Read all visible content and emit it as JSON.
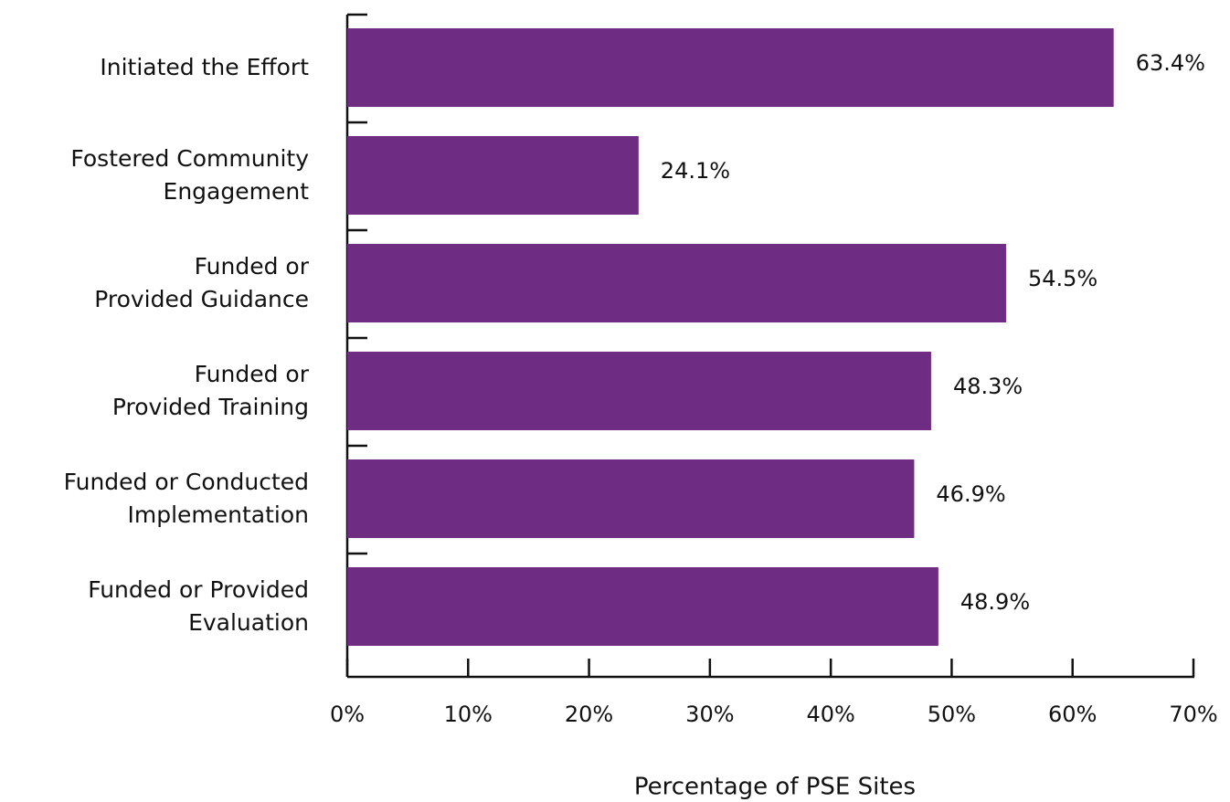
{
  "chart_data": {
    "type": "barh",
    "categories": [
      "Initiated the Effort",
      "Fostered Community\nEngagement",
      "Funded or\nProvided Guidance",
      "Funded or\nProvided Training",
      "Funded or Conducted\nImplementation",
      "Funded or Provided\nEvaluation"
    ],
    "values": [
      63.4,
      24.1,
      54.5,
      48.3,
      46.9,
      48.9
    ],
    "value_labels": [
      "63.4%",
      "24.1%",
      "54.5%",
      "48.3%",
      "46.9%",
      "48.9%"
    ],
    "color": "#6f2c83",
    "xlabel": "Percentage of PSE Sites",
    "xlim": [
      0,
      70
    ],
    "xticks": [
      {
        "value": 0,
        "label": "0%"
      },
      {
        "value": 10,
        "label": "10%"
      },
      {
        "value": 20,
        "label": "20%"
      },
      {
        "value": 30,
        "label": "30%"
      },
      {
        "value": 40,
        "label": "40%"
      },
      {
        "value": 50,
        "label": "50%"
      },
      {
        "value": 60,
        "label": "60%"
      },
      {
        "value": 70,
        "label": "70%"
      }
    ],
    "grid": false
  }
}
